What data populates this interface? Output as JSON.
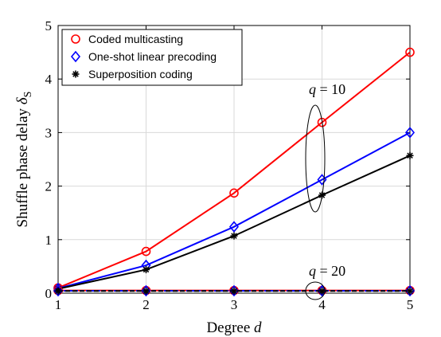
{
  "chart_data": {
    "type": "line",
    "xlabel_text": "Degree",
    "xlabel_var": "d",
    "ylabel_text": "Shuffle phase delay",
    "ylabel_var": "δ",
    "ylabel_sub": "S",
    "xlim": [
      1,
      5
    ],
    "ylim": [
      0,
      5
    ],
    "xticks": [
      "1",
      "2",
      "3",
      "4",
      "5"
    ],
    "yticks": [
      "0",
      "1",
      "2",
      "3",
      "4",
      "5"
    ],
    "grid": true,
    "legend_position": "top-left",
    "x": [
      1,
      2,
      3,
      4,
      5
    ],
    "series": [
      {
        "name": "Coded multicasting",
        "group": "q = 10",
        "color": "#ff0000",
        "marker": "circle",
        "values": [
          0.1,
          0.78,
          1.87,
          3.19,
          4.5
        ]
      },
      {
        "name": "One-shot linear precoding",
        "group": "q = 10",
        "color": "#0000ff",
        "marker": "diamond",
        "values": [
          0.09,
          0.52,
          1.24,
          2.12,
          3.0
        ]
      },
      {
        "name": "Superposition coding",
        "group": "q = 10",
        "color": "#000000",
        "marker": "star",
        "values": [
          0.08,
          0.44,
          1.07,
          1.83,
          2.57
        ]
      },
      {
        "name": "Coded multicasting",
        "group": "q = 20",
        "color": "#ff0000",
        "marker": "circle",
        "values": [
          0.05,
          0.05,
          0.05,
          0.05,
          0.05
        ]
      },
      {
        "name": "One-shot linear precoding",
        "group": "q = 20",
        "color": "#0000ff",
        "marker": "diamond",
        "values": [
          0.045,
          0.045,
          0.045,
          0.045,
          0.045
        ]
      },
      {
        "name": "Superposition coding",
        "group": "q = 20",
        "color": "#000000",
        "marker": "star",
        "values": [
          0.04,
          0.04,
          0.04,
          0.04,
          0.04
        ]
      }
    ],
    "legend": [
      {
        "label": "Coded multicasting",
        "color": "#ff0000",
        "marker": "circle"
      },
      {
        "label": "One-shot linear precoding",
        "color": "#0000ff",
        "marker": "diamond"
      },
      {
        "label": "Superposition coding",
        "color": "#000000",
        "marker": "star"
      }
    ],
    "annotations": [
      {
        "var": "q",
        "text": " = 10"
      },
      {
        "var": "q",
        "text": " = 20"
      }
    ]
  }
}
